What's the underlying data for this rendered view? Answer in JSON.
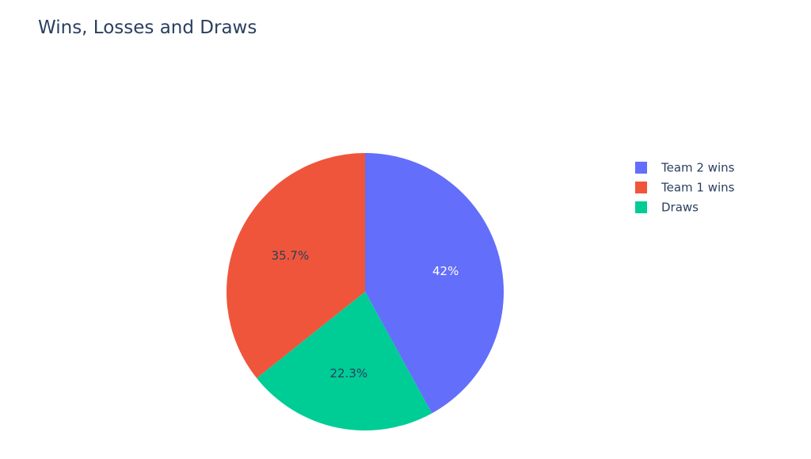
{
  "chart_data": {
    "type": "pie",
    "title": "Wins, Losses and Draws",
    "slices": [
      {
        "name": "Team 2 wins",
        "value": 42.0,
        "label": "42%",
        "color": "#636efa",
        "label_color": "#ffffff"
      },
      {
        "name": "Draws",
        "value": 22.3,
        "label": "22.3%",
        "color": "#00cc96",
        "label_color": "#2a3f5f"
      },
      {
        "name": "Team 1 wins",
        "value": 35.7,
        "label": "35.7%",
        "color": "#ef553b",
        "label_color": "#2a3f5f"
      }
    ],
    "legend": {
      "position": "right",
      "entries": [
        {
          "name": "Team 2 wins",
          "color": "#636efa"
        },
        {
          "name": "Team 1 wins",
          "color": "#ef553b"
        },
        {
          "name": "Draws",
          "color": "#00cc96"
        }
      ]
    },
    "direction": "clockwise",
    "start": "top"
  }
}
